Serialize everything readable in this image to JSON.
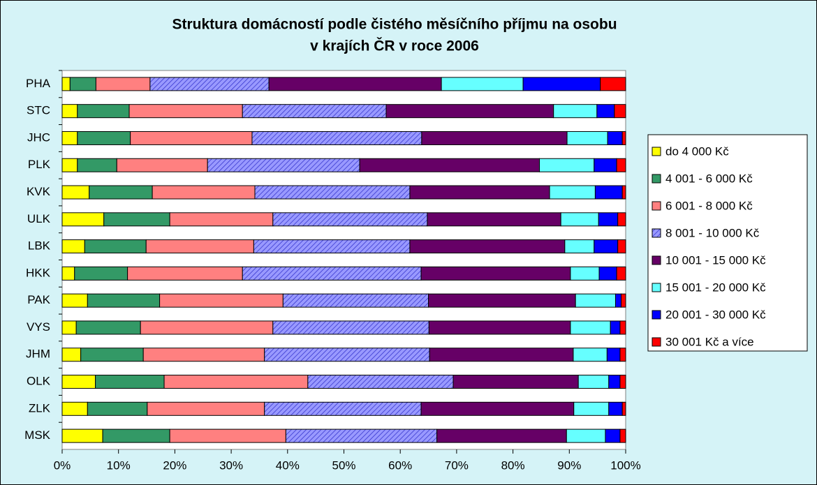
{
  "chart_data": {
    "type": "stacked_bar_horizontal",
    "title": [
      "Struktura domácností podle čistého měsíčního příjmu na osobu",
      "v krajích ČR v roce 2006"
    ],
    "categories": [
      "PHA",
      "STC",
      "JHC",
      "PLK",
      "KVK",
      "ULK",
      "LBK",
      "HKK",
      "PAK",
      "VYS",
      "JHM",
      "OLK",
      "ZLK",
      "MSK"
    ],
    "series": [
      {
        "name": "do 4 000 Kč",
        "color": "#ffff00",
        "values": [
          1.4,
          2.7,
          2.7,
          2.7,
          4.8,
          7.4,
          4.0,
          2.2,
          4.5,
          2.5,
          3.3,
          5.9,
          4.5,
          7.2
        ]
      },
      {
        "name": "4 001 - 6 000 Kč",
        "color": "#339966",
        "values": [
          4.6,
          9.2,
          9.4,
          7.0,
          11.2,
          11.7,
          10.9,
          9.4,
          12.8,
          11.4,
          11.1,
          12.2,
          10.6,
          11.9
        ]
      },
      {
        "name": "6 001 - 8 000 Kč",
        "color": "#ff8080",
        "values": [
          9.6,
          20.1,
          21.6,
          16.1,
          18.2,
          18.3,
          19.1,
          20.4,
          21.9,
          23.5,
          21.5,
          25.5,
          20.8,
          20.6
        ]
      },
      {
        "name": "8 001 - 10 000 Kč",
        "color": "#9999ff",
        "hatch": true,
        "values": [
          21.1,
          25.5,
          30.1,
          27.0,
          27.5,
          27.4,
          27.7,
          31.7,
          25.8,
          27.7,
          29.3,
          25.8,
          27.8,
          26.8
        ]
      },
      {
        "name": "10 001 - 15 000 Kč",
        "color": "#660066",
        "values": [
          30.6,
          29.7,
          25.8,
          31.9,
          24.8,
          23.7,
          27.5,
          26.5,
          26.1,
          25.1,
          25.5,
          22.2,
          27.1,
          23.0
        ]
      },
      {
        "name": "15 001 - 20 000 Kč",
        "color": "#66ffff",
        "values": [
          14.5,
          7.7,
          7.2,
          9.7,
          8.1,
          6.7,
          5.2,
          5.1,
          7.1,
          7.1,
          6.0,
          5.4,
          6.2,
          6.9
        ]
      },
      {
        "name": "20 001 - 30 000 Kč",
        "color": "#0000ff",
        "values": [
          13.7,
          3.1,
          2.6,
          4.0,
          4.8,
          3.4,
          4.2,
          3.1,
          1.0,
          1.7,
          2.3,
          2.0,
          2.4,
          2.6
        ]
      },
      {
        "name": "30 001 Kč a více",
        "color": "#ff0000",
        "values": [
          4.5,
          2.0,
          0.6,
          1.6,
          0.6,
          1.4,
          1.4,
          1.6,
          0.8,
          1.0,
          1.0,
          1.0,
          0.6,
          1.0
        ]
      }
    ],
    "xlim": [
      0,
      100
    ],
    "xticks": [
      {
        "value": 0,
        "label": "0%"
      },
      {
        "value": 10,
        "label": "10%"
      },
      {
        "value": 20,
        "label": "20%"
      },
      {
        "value": 30,
        "label": "30%"
      },
      {
        "value": 40,
        "label": "40%"
      },
      {
        "value": 50,
        "label": "50%"
      },
      {
        "value": 60,
        "label": "60%"
      },
      {
        "value": 70,
        "label": "70%"
      },
      {
        "value": 80,
        "label": "80%"
      },
      {
        "value": 90,
        "label": "90%"
      },
      {
        "value": 100,
        "label": "100%"
      }
    ],
    "legend": "right"
  }
}
